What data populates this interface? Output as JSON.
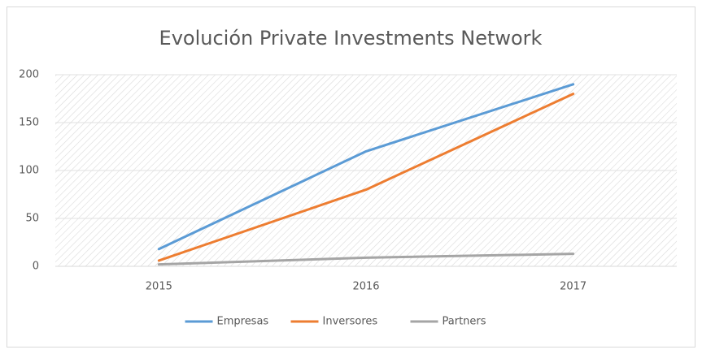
{
  "chart_data": {
    "type": "line",
    "title": "Evolución Private Investments Network",
    "categories": [
      "2015",
      "2016",
      "2017"
    ],
    "series": [
      {
        "name": "Empresas",
        "color": "#5b9bd5",
        "values": [
          18,
          120,
          190
        ]
      },
      {
        "name": "Inversores",
        "color": "#ed7d31",
        "values": [
          6,
          80,
          180
        ]
      },
      {
        "name": "Partners",
        "color": "#a5a5a5",
        "values": [
          2,
          9,
          13
        ]
      }
    ],
    "ylim": [
      0,
      200
    ],
    "yticks": [
      0,
      50,
      100,
      150,
      200
    ],
    "grid": true,
    "legend": "bottom"
  }
}
